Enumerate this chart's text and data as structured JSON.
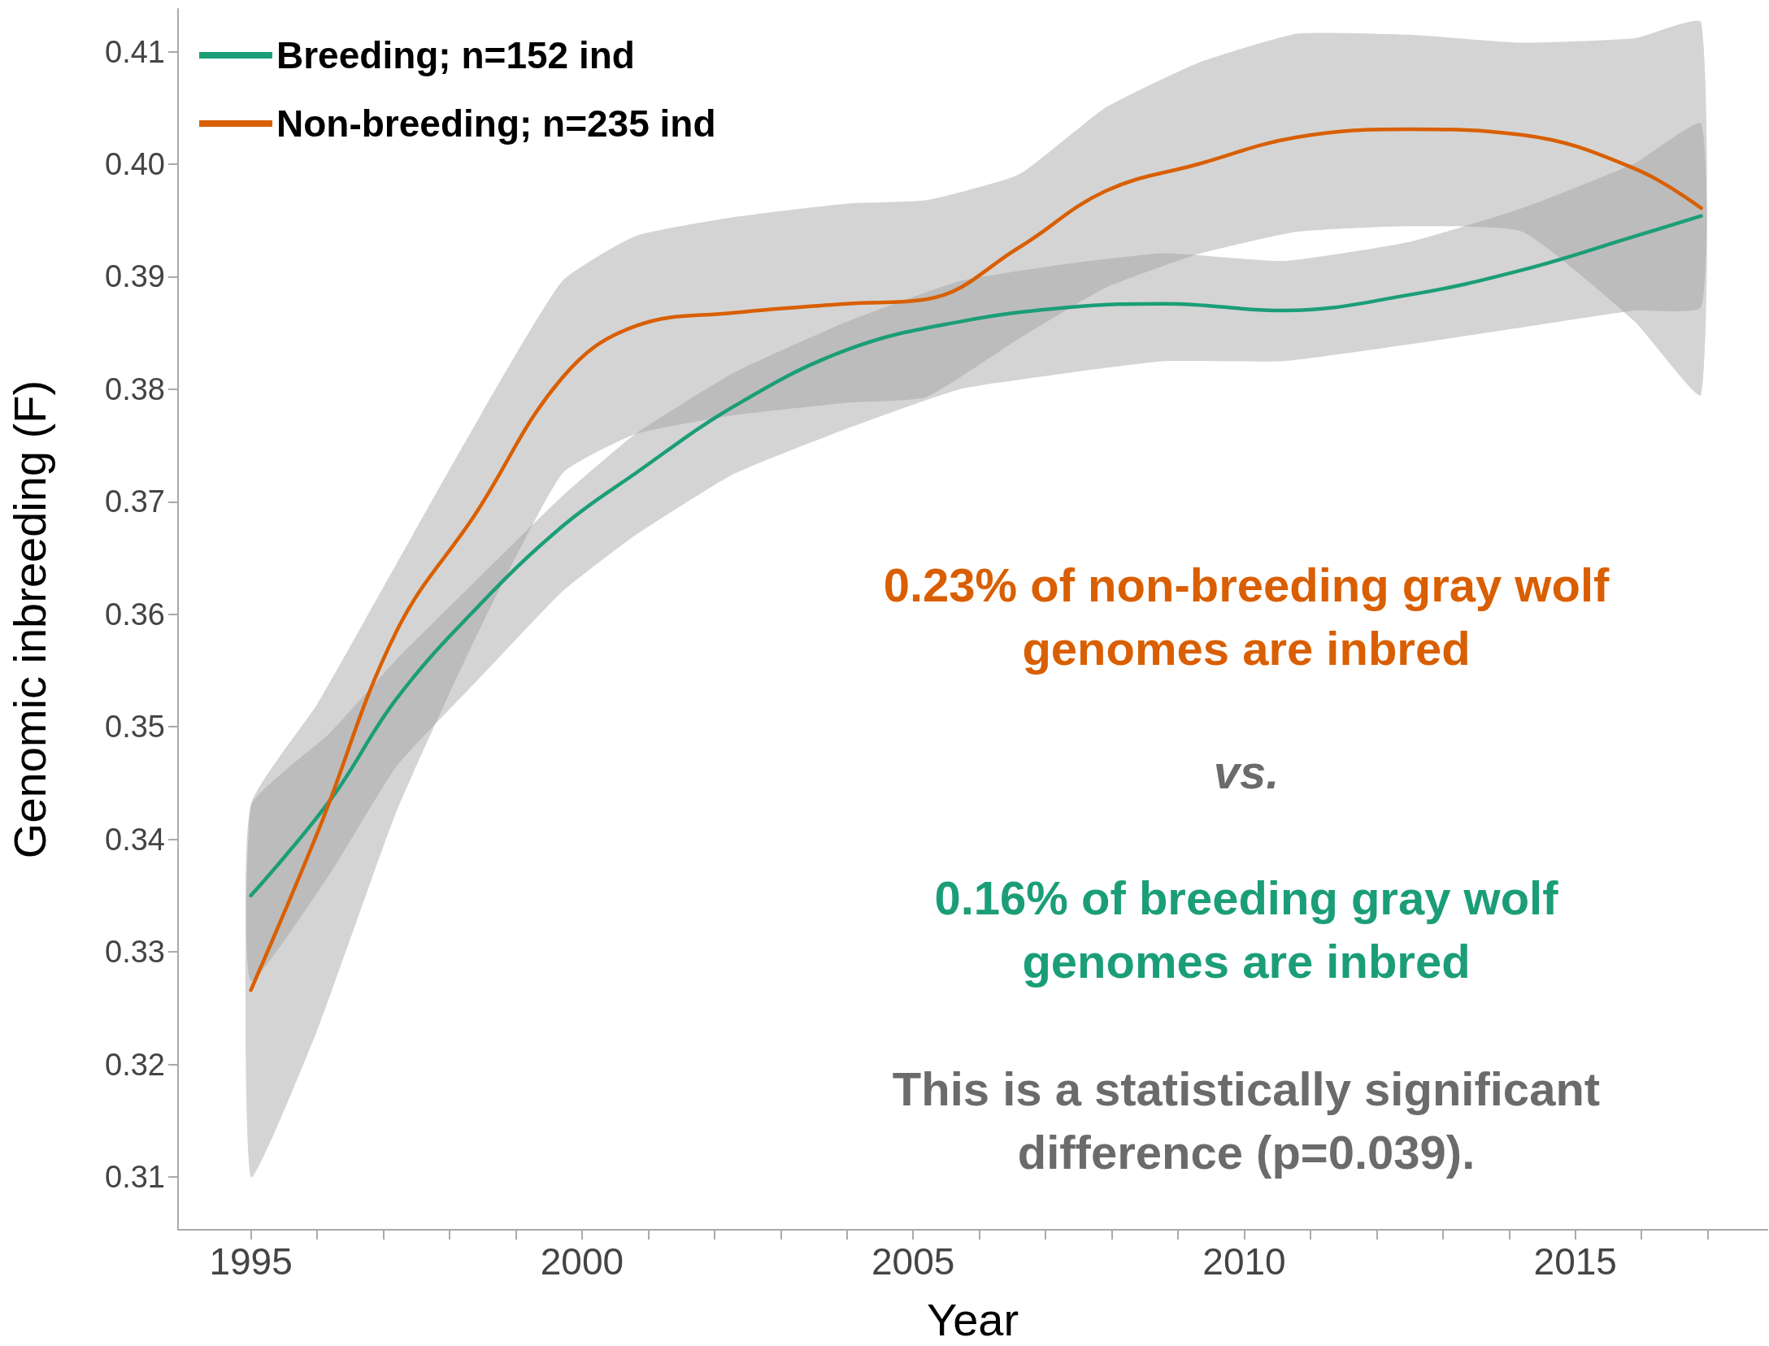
{
  "chart_data": {
    "type": "line",
    "xlabel": "Year",
    "ylabel": "Genomic inbreeding (F)",
    "xlim": [
      1993.9,
      2017.9
    ],
    "ylim": [
      0.3053,
      0.4138
    ],
    "xticks": [
      1995,
      {
        "value": 1996,
        "label": null
      },
      {
        "value": 1997,
        "label": null
      },
      {
        "value": 1998,
        "label": null
      },
      {
        "value": 1999,
        "label": null
      },
      2000,
      {
        "value": 2001,
        "label": null
      },
      {
        "value": 2002,
        "label": null
      },
      {
        "value": 2003,
        "label": null
      },
      {
        "value": 2004,
        "label": null
      },
      2005,
      {
        "value": 2006,
        "label": null
      },
      {
        "value": 2007,
        "label": null
      },
      {
        "value": 2008,
        "label": null
      },
      {
        "value": 2009,
        "label": null
      },
      2010,
      {
        "value": 2011,
        "label": null
      },
      {
        "value": 2012,
        "label": null
      },
      {
        "value": 2013,
        "label": null
      },
      {
        "value": 2014,
        "label": null
      },
      2015,
      {
        "value": 2016,
        "label": null
      },
      {
        "value": 2017,
        "label": null
      }
    ],
    "yticks": [
      {
        "value": 0.31,
        "label": "0.31"
      },
      {
        "value": 0.32,
        "label": "0.32"
      },
      {
        "value": 0.33,
        "label": "0.33"
      },
      {
        "value": 0.34,
        "label": "0.34"
      },
      {
        "value": 0.35,
        "label": "0.35"
      },
      {
        "value": 0.36,
        "label": "0.36"
      },
      {
        "value": 0.37,
        "label": "0.37"
      },
      {
        "value": 0.38,
        "label": "0.38"
      },
      {
        "value": 0.39,
        "label": "0.39"
      },
      {
        "value": 0.4,
        "label": "0.40"
      },
      {
        "value": 0.41,
        "label": "0.41"
      }
    ],
    "grid": false,
    "legend": "top left",
    "marker": "none",
    "line_style": "solid",
    "series": [
      {
        "name": "Breeding; n=152 ind",
        "color": "#1b9e77",
        "x": [
          1995,
          1996.2,
          1997.2,
          1998.4,
          1999.7,
          2000.8,
          2002.3,
          2004.0,
          2005.7,
          2007.4,
          2008.8,
          2010.6,
          2012.5,
          2014.2,
          2015.9,
          2016.9
        ],
        "values": [
          0.335,
          0.3435,
          0.3525,
          0.3605,
          0.3678,
          0.3725,
          0.3785,
          0.3835,
          0.386,
          0.3873,
          0.3876,
          0.387,
          0.3884,
          0.3906,
          0.3936,
          0.3954
        ],
        "upper": [
          0.343,
          0.3495,
          0.356,
          0.363,
          0.3705,
          0.376,
          0.3815,
          0.386,
          0.3896,
          0.3912,
          0.3921,
          0.3914,
          0.3931,
          0.3961,
          0.4001,
          0.4036
        ],
        "lower": [
          0.3274,
          0.337,
          0.3465,
          0.354,
          0.362,
          0.367,
          0.3725,
          0.3765,
          0.38,
          0.3815,
          0.3825,
          0.3825,
          0.384,
          0.3855,
          0.387,
          0.3873
        ]
      },
      {
        "name": "Non-breeding; n=235 ind",
        "color": "#d95f02",
        "x": [
          1995,
          1996,
          1997.2,
          1998.4,
          1999.7,
          2000.8,
          2002.3,
          2004.0,
          2005.2,
          2006.6,
          2007.9,
          2009.3,
          2010.8,
          2012.5,
          2014.2,
          2015.9,
          2016.9
        ],
        "values": [
          0.3266,
          0.3405,
          0.3585,
          0.369,
          0.381,
          0.3856,
          0.3868,
          0.3876,
          0.388,
          0.3926,
          0.3976,
          0.4,
          0.4024,
          0.4031,
          0.4026,
          0.3996,
          0.3961
        ],
        "upper": [
          0.343,
          0.352,
          0.3645,
          0.377,
          0.3896,
          0.3936,
          0.3953,
          0.3965,
          0.3968,
          0.3991,
          0.405,
          0.409,
          0.4116,
          0.4115,
          0.4108,
          0.4112,
          0.4126
        ],
        "lower": [
          0.31,
          0.323,
          0.3425,
          0.358,
          0.3725,
          0.376,
          0.3777,
          0.3788,
          0.3793,
          0.3845,
          0.389,
          0.392,
          0.394,
          0.3945,
          0.394,
          0.386,
          0.3795
        ]
      }
    ],
    "annotations": [
      "0.23% of non-breeding gray wolf\ngenomes are inbred",
      "vs.",
      "0.16% of breeding gray wolf\ngenomes are inbred",
      "This is a statistically significant\ndifference (p=0.039)."
    ]
  }
}
